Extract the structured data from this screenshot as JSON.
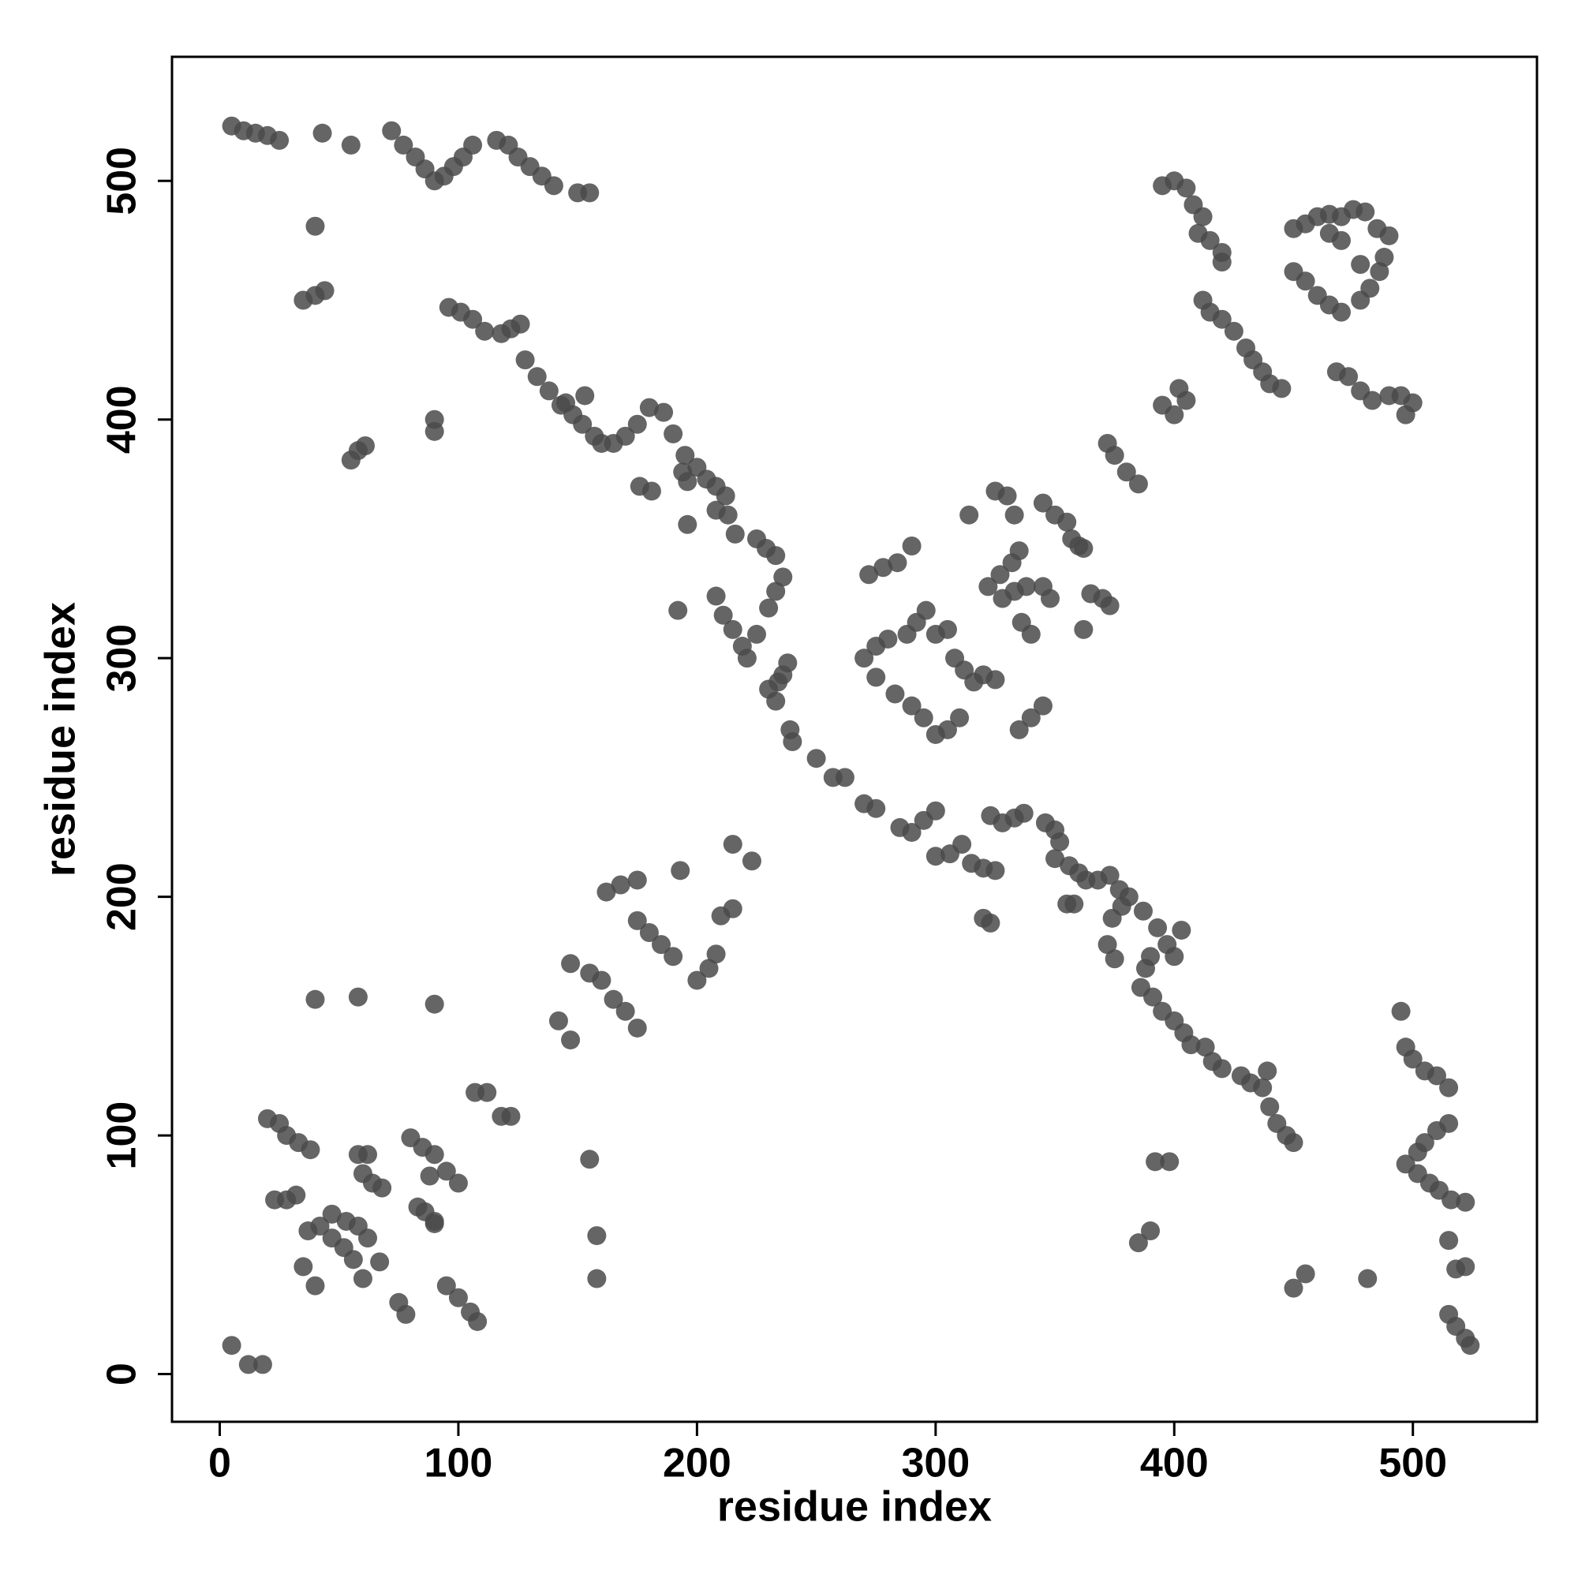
{
  "chart_data": {
    "type": "scatter",
    "x_label": "residue index",
    "y_label": "residue index",
    "xlim": [
      -20,
      552
    ],
    "ylim": [
      -20,
      552
    ],
    "xticks": [
      0,
      100,
      200,
      300,
      400,
      500
    ],
    "yticks": [
      0,
      100,
      200,
      300,
      400,
      500
    ],
    "color": "#4a4a4a",
    "x": [
      5,
      10,
      15,
      20,
      25,
      43,
      55,
      72,
      77,
      82,
      86,
      90,
      94,
      98,
      102,
      106,
      116,
      121,
      125,
      130,
      135,
      140,
      150,
      155,
      40,
      35,
      40,
      44,
      55,
      58,
      61,
      90,
      90,
      96,
      101,
      106,
      111,
      118,
      122,
      126,
      128,
      133,
      138,
      143,
      148,
      152,
      157,
      160,
      153,
      145,
      165,
      170,
      175,
      180,
      176,
      181,
      186,
      190,
      195,
      194,
      196,
      200,
      204,
      208,
      212,
      208,
      213,
      216,
      225,
      229,
      233,
      236,
      233,
      230,
      196,
      192,
      208,
      211,
      215,
      219,
      221,
      225,
      230,
      234,
      236,
      238,
      233,
      239,
      240,
      250,
      257,
      262,
      270,
      275,
      285,
      290,
      295,
      300,
      300,
      306,
      311,
      315,
      320,
      325,
      320,
      323,
      323,
      328,
      333,
      337,
      346,
      350,
      352,
      350,
      356,
      360,
      363,
      368,
      373,
      377,
      381,
      374,
      378,
      372,
      375,
      387,
      393,
      397,
      400,
      403,
      390,
      388,
      386,
      391,
      395,
      400,
      404,
      407,
      413,
      416,
      420,
      428,
      432,
      437,
      439,
      440,
      443,
      447,
      450,
      355,
      358,
      392,
      398,
      385,
      390,
      450,
      455,
      481,
      495,
      497,
      500,
      505,
      510,
      515,
      497,
      502,
      505,
      510,
      515,
      502,
      507,
      511,
      516,
      522,
      515,
      518,
      522,
      515,
      518,
      522,
      524,
      5,
      12,
      18,
      20,
      25,
      28,
      33,
      38,
      23,
      28,
      32,
      37,
      42,
      47,
      52,
      56,
      60,
      35,
      40,
      47,
      53,
      58,
      62,
      67,
      58,
      62,
      60,
      64,
      68,
      75,
      78,
      83,
      86,
      90,
      80,
      85,
      90,
      95,
      100,
      88,
      90,
      95,
      100,
      105,
      108,
      107,
      112,
      118,
      122,
      40,
      58,
      90,
      147,
      155,
      160,
      165,
      170,
      175,
      142,
      147,
      155,
      158,
      158,
      162,
      168,
      175,
      175,
      180,
      185,
      190,
      193,
      200,
      205,
      208,
      210,
      215,
      215,
      223,
      270,
      275,
      280,
      272,
      278,
      284,
      290,
      275,
      283,
      290,
      295,
      300,
      305,
      310,
      288,
      292,
      296,
      300,
      305,
      308,
      312,
      316,
      320,
      325,
      314,
      322,
      327,
      332,
      335,
      325,
      330,
      333,
      328,
      333,
      336,
      340,
      335,
      340,
      345,
      338,
      345,
      348,
      345,
      350,
      355,
      357,
      360,
      362,
      362,
      365,
      370,
      373,
      372,
      375,
      380,
      385,
      402,
      405,
      400,
      395,
      395,
      400,
      405,
      408,
      412,
      410,
      415,
      420,
      420,
      412,
      415,
      420,
      425,
      430,
      433,
      437,
      440,
      445,
      450,
      455,
      460,
      465,
      470,
      475,
      480,
      485,
      490,
      450,
      455,
      460,
      465,
      470,
      478,
      482,
      486,
      488,
      478,
      470,
      465,
      468,
      473,
      478,
      483,
      490,
      495,
      497,
      500
    ],
    "values": [
      523,
      521,
      520,
      519,
      517,
      520,
      515,
      521,
      515,
      510,
      505,
      500,
      502,
      506,
      510,
      515,
      517,
      515,
      510,
      506,
      502,
      498,
      495,
      495,
      481,
      450,
      452,
      454,
      383,
      387,
      389,
      400,
      395,
      447,
      445,
      442,
      437,
      436,
      438,
      440,
      425,
      418,
      412,
      406,
      402,
      398,
      393,
      390,
      410,
      407,
      390,
      393,
      398,
      405,
      372,
      370,
      403,
      394,
      385,
      378,
      374,
      380,
      375,
      372,
      368,
      362,
      360,
      352,
      350,
      346,
      343,
      334,
      328,
      321,
      356,
      320,
      326,
      318,
      312,
      305,
      300,
      310,
      287,
      290,
      293,
      298,
      282,
      270,
      265,
      258,
      250,
      250,
      239,
      237,
      229,
      227,
      232,
      236,
      217,
      218,
      222,
      214,
      212,
      211,
      191,
      189,
      234,
      231,
      233,
      235,
      231,
      228,
      223,
      216,
      213,
      210,
      207,
      207,
      209,
      203,
      200,
      191,
      196,
      180,
      174,
      194,
      187,
      180,
      175,
      186,
      175,
      170,
      162,
      158,
      152,
      148,
      143,
      138,
      137,
      131,
      128,
      125,
      122,
      120,
      127,
      112,
      105,
      100,
      97,
      197,
      197,
      89,
      89,
      55,
      60,
      36,
      42,
      40,
      152,
      137,
      132,
      127,
      125,
      120,
      88,
      93,
      97,
      102,
      105,
      84,
      80,
      77,
      73,
      72,
      56,
      44,
      45,
      25,
      20,
      15,
      12,
      12,
      4,
      4,
      107,
      105,
      100,
      97,
      94,
      73,
      73,
      75,
      60,
      62,
      57,
      53,
      48,
      40,
      45,
      37,
      67,
      64,
      62,
      57,
      47,
      92,
      92,
      84,
      80,
      78,
      30,
      25,
      70,
      68,
      63,
      99,
      95,
      92,
      85,
      80,
      83,
      64,
      37,
      32,
      26,
      22,
      118,
      118,
      108,
      108,
      157,
      158,
      155,
      172,
      168,
      165,
      157,
      152,
      145,
      148,
      140,
      90,
      58,
      40,
      202,
      205,
      207,
      190,
      185,
      180,
      175,
      211,
      165,
      170,
      176,
      192,
      195,
      222,
      215,
      300,
      305,
      308,
      335,
      338,
      340,
      347,
      292,
      285,
      280,
      275,
      268,
      270,
      275,
      310,
      315,
      320,
      310,
      312,
      300,
      295,
      290,
      293,
      291,
      360,
      330,
      335,
      340,
      345,
      370,
      368,
      360,
      325,
      328,
      315,
      310,
      270,
      275,
      280,
      330,
      330,
      325,
      365,
      360,
      357,
      350,
      347,
      346,
      312,
      327,
      325,
      322,
      390,
      385,
      378,
      373,
      413,
      408,
      402,
      406,
      498,
      500,
      497,
      490,
      485,
      478,
      475,
      470,
      466,
      450,
      445,
      442,
      437,
      430,
      425,
      420,
      415,
      413,
      480,
      482,
      485,
      486,
      485,
      488,
      487,
      480,
      477,
      462,
      458,
      452,
      448,
      445,
      450,
      455,
      462,
      468,
      465,
      475,
      478,
      420,
      418,
      412,
      408,
      410,
      410,
      402,
      407
    ]
  }
}
